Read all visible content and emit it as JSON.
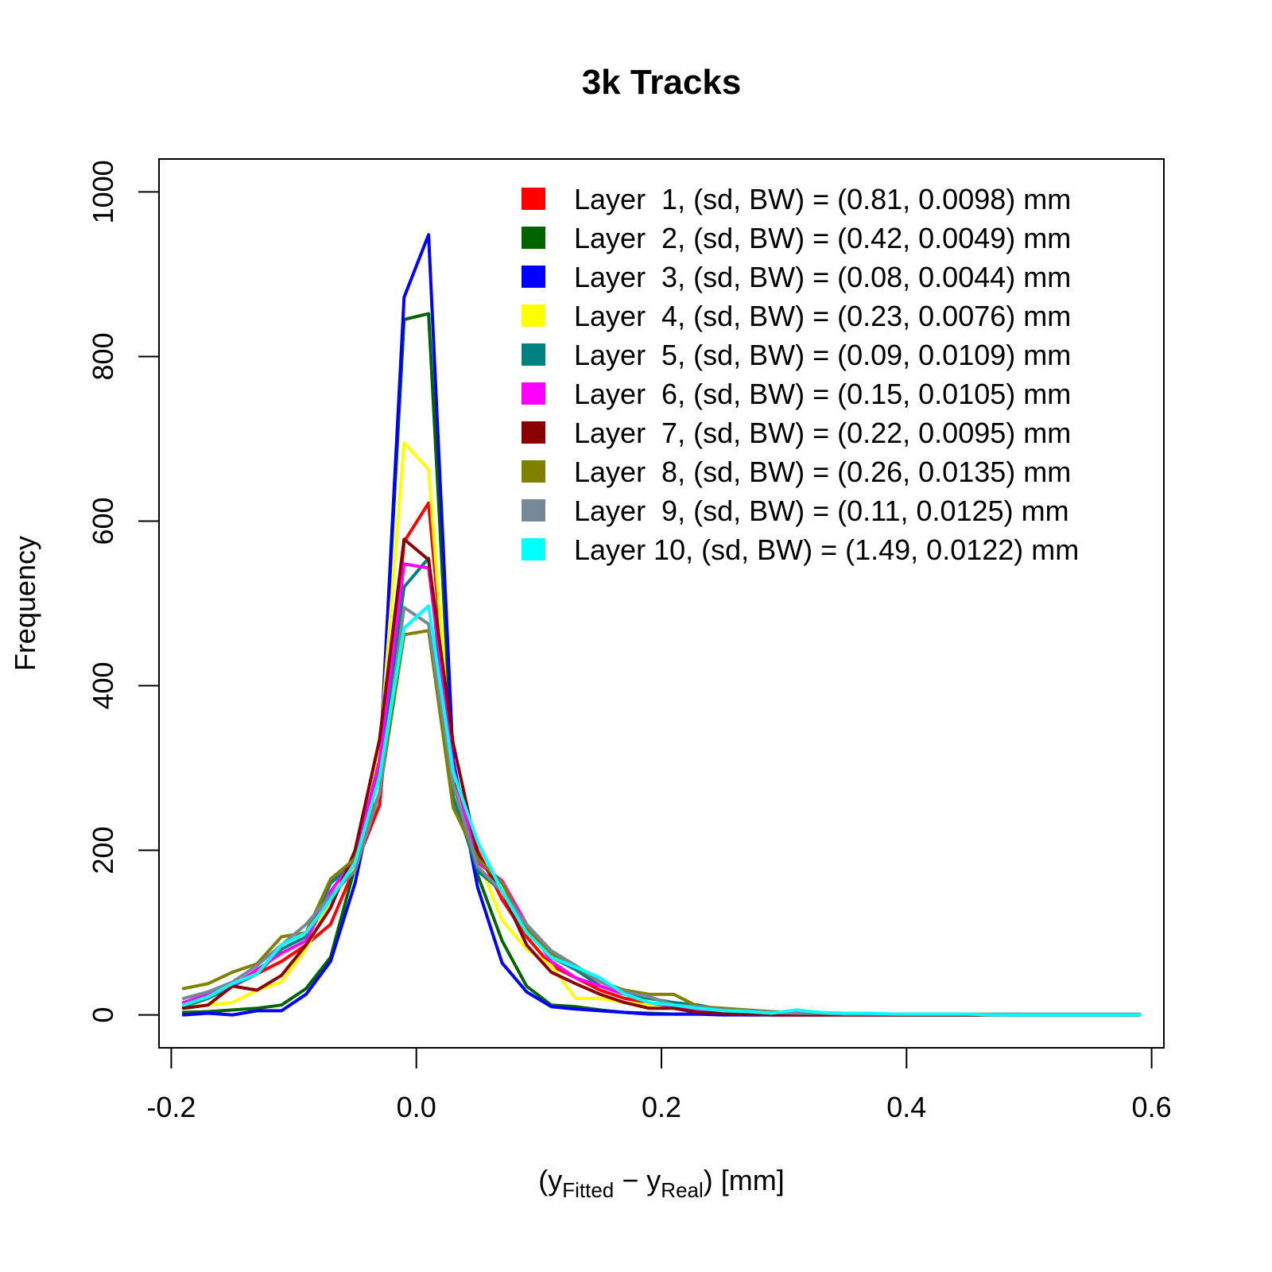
{
  "chart_data": {
    "type": "line",
    "title": "3k Tracks",
    "xlabel": {
      "pre": "(y",
      "sub1": "Fitted",
      "mid": " − y",
      "sub2": "Real",
      "post": ")  [mm]"
    },
    "ylabel": "Frequency",
    "xlim": [
      -0.21,
      0.61
    ],
    "ylim": [
      -40,
      1040
    ],
    "x_ticks": [
      -0.2,
      0.0,
      0.2,
      0.4,
      0.6
    ],
    "x_tick_labels": [
      "-0.2",
      "0.0",
      "0.2",
      "0.4",
      "0.6"
    ],
    "y_ticks": [
      0,
      200,
      400,
      600,
      800,
      1000
    ],
    "y_tick_labels": [
      "0",
      "200",
      "400",
      "600",
      "800",
      "1000"
    ],
    "grid": false,
    "legend_position": "top-right",
    "x": [
      -0.19,
      -0.17,
      -0.15,
      -0.13,
      -0.11,
      -0.09,
      -0.07,
      -0.05,
      -0.03,
      -0.01,
      0.01,
      0.03,
      0.05,
      0.07,
      0.09,
      0.11,
      0.13,
      0.15,
      0.17,
      0.19,
      0.21,
      0.23,
      0.25,
      0.27,
      0.29,
      0.31,
      0.33,
      0.35,
      0.37,
      0.39,
      0.41,
      0.43,
      0.45,
      0.47,
      0.49,
      0.51,
      0.53,
      0.55,
      0.57,
      0.59
    ],
    "series": [
      {
        "name": "Layer  1, (sd, BW) = (0.81, 0.0098) mm",
        "color": "#FF0000",
        "values": [
          15,
          20,
          35,
          50,
          65,
          85,
          110,
          180,
          255,
          575,
          622,
          300,
          200,
          140,
          95,
          60,
          45,
          30,
          20,
          15,
          10,
          5,
          3,
          2,
          1,
          1,
          1,
          0,
          0,
          0,
          0,
          0,
          0,
          0,
          0,
          0,
          0,
          0,
          0,
          0
        ]
      },
      {
        "name": "Layer  2, (sd, BW) = (0.42, 0.0049) mm",
        "color": "#006400",
        "values": [
          3,
          4,
          6,
          8,
          12,
          32,
          70,
          180,
          300,
          845,
          852,
          290,
          170,
          90,
          35,
          12,
          10,
          6,
          3,
          2,
          1,
          1,
          1,
          0,
          0,
          0,
          0,
          0,
          0,
          0,
          0,
          0,
          0,
          0,
          0,
          0,
          0,
          0,
          0,
          0
        ]
      },
      {
        "name": "Layer  3, (sd, BW) = (0.08, 0.0044) mm",
        "color": "#0000FF",
        "values": [
          0,
          2,
          0,
          5,
          5,
          25,
          65,
          160,
          300,
          872,
          948,
          310,
          155,
          63,
          28,
          10,
          7,
          5,
          3,
          1,
          1,
          1,
          0,
          0,
          0,
          0,
          0,
          0,
          0,
          0,
          0,
          0,
          0,
          0,
          0,
          0,
          0,
          0,
          0,
          0
        ]
      },
      {
        "name": "Layer  4, (sd, BW) = (0.23, 0.0076) mm",
        "color": "#FFFF00",
        "values": [
          10,
          12,
          15,
          30,
          40,
          80,
          140,
          180,
          320,
          695,
          663,
          280,
          190,
          115,
          80,
          60,
          20,
          20,
          15,
          12,
          8,
          5,
          3,
          2,
          1,
          1,
          0,
          0,
          0,
          0,
          0,
          0,
          0,
          0,
          0,
          0,
          0,
          0,
          0,
          0
        ]
      },
      {
        "name": "Layer  5, (sd, BW) = (0.09, 0.0109) mm",
        "color": "#008080",
        "values": [
          10,
          20,
          35,
          50,
          80,
          95,
          160,
          185,
          300,
          520,
          555,
          265,
          175,
          150,
          105,
          70,
          55,
          35,
          25,
          20,
          15,
          12,
          6,
          4,
          3,
          2,
          1,
          1,
          0,
          0,
          0,
          0,
          0,
          0,
          0,
          0,
          0,
          0,
          0,
          0
        ]
      },
      {
        "name": "Layer  6, (sd, BW) = (0.15, 0.0105) mm",
        "color": "#FF00FF",
        "values": [
          15,
          25,
          35,
          55,
          75,
          90,
          150,
          190,
          310,
          548,
          543,
          300,
          185,
          163,
          110,
          65,
          45,
          35,
          25,
          15,
          10,
          5,
          2,
          1,
          0,
          0,
          0,
          0,
          0,
          0,
          0,
          0,
          0,
          0,
          0,
          0,
          0,
          0,
          0,
          0
        ]
      },
      {
        "name": "Layer  7, (sd, BW) = (0.22, 0.0095) mm",
        "color": "#8B0000",
        "values": [
          8,
          12,
          35,
          30,
          48,
          85,
          130,
          200,
          335,
          578,
          553,
          330,
          195,
          150,
          85,
          52,
          38,
          25,
          15,
          8,
          8,
          3,
          2,
          1,
          0,
          0,
          0,
          0,
          0,
          0,
          0,
          0,
          0,
          0,
          0,
          0,
          0,
          0,
          0,
          0
        ]
      },
      {
        "name": "Layer  8, (sd, BW) = (0.26, 0.0135) mm",
        "color": "#808000",
        "values": [
          32,
          38,
          52,
          62,
          95,
          100,
          165,
          190,
          270,
          462,
          467,
          252,
          190,
          160,
          105,
          75,
          58,
          40,
          30,
          25,
          25,
          10,
          8,
          6,
          4,
          3,
          2,
          2,
          1,
          1,
          1,
          1,
          1,
          0,
          1,
          0,
          0,
          0,
          0,
          0
        ]
      },
      {
        "name": "Layer  9, (sd, BW) = (0.11, 0.0125) mm",
        "color": "#778899",
        "values": [
          20,
          28,
          40,
          60,
          85,
          110,
          145,
          175,
          270,
          495,
          475,
          280,
          180,
          150,
          110,
          78,
          60,
          40,
          28,
          22,
          12,
          10,
          6,
          5,
          3,
          2,
          2,
          1,
          1,
          1,
          1,
          1,
          1,
          1,
          1,
          1,
          1,
          1,
          1,
          1
        ]
      },
      {
        "name": "Layer 10, (sd, BW) = (1.49, 0.0122) mm",
        "color": "#00FFFF",
        "values": [
          12,
          22,
          38,
          50,
          85,
          100,
          140,
          185,
          290,
          470,
          497,
          295,
          210,
          150,
          100,
          70,
          58,
          45,
          25,
          15,
          12,
          8,
          5,
          4,
          2,
          6,
          3,
          2,
          2,
          1,
          1,
          1,
          1,
          0,
          0,
          0,
          0,
          0,
          0,
          0
        ]
      }
    ]
  }
}
